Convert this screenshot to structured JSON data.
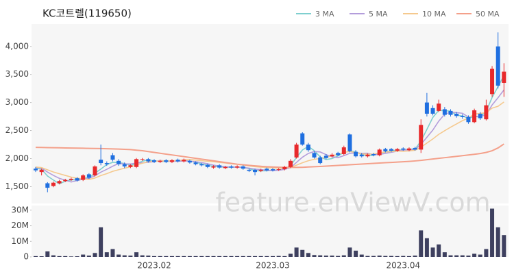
{
  "watermark": "feature.enViewV.com",
  "chart_data": [
    {
      "type": "candlestick",
      "title": "KC코트렐(119650)",
      "up_color": "#e8292b",
      "down_color": "#1f6fe0",
      "open": [
        1820,
        1760,
        1560,
        1510,
        1560,
        1600,
        1620,
        1650,
        1620,
        1720,
        1700,
        1980,
        1920,
        2060,
        1960,
        1900,
        1850,
        1850,
        1980,
        1990,
        1970,
        1940,
        1970,
        1940,
        1980,
        1950,
        1960,
        1930,
        1900,
        1890,
        1840,
        1880,
        1830,
        1860,
        1840,
        1860,
        1800,
        1800,
        1780,
        1820,
        1810,
        1800,
        1810,
        1850,
        2020,
        2450,
        2250,
        2100,
        2020,
        2050,
        2040,
        2100,
        2080,
        2430,
        2120,
        2070,
        2040,
        2080,
        2060,
        2170,
        2170,
        2140,
        2180,
        2150,
        2190,
        2160,
        3000,
        2900,
        2850,
        2880,
        2850,
        2800,
        2760,
        2740,
        2650,
        2800,
        2700,
        3150,
        4000,
        3350
      ],
      "high": [
        1850,
        1820,
        1580,
        1590,
        1620,
        1640,
        1660,
        1670,
        1720,
        1740,
        1880,
        2250,
        1950,
        2100,
        1990,
        1930,
        1900,
        2010,
        2010,
        2010,
        1990,
        1980,
        1990,
        1990,
        2000,
        2000,
        1980,
        1950,
        1920,
        1910,
        1880,
        1900,
        1870,
        1880,
        1880,
        1880,
        1820,
        1820,
        1820,
        1840,
        1830,
        1830,
        1870,
        1990,
        2280,
        2470,
        2280,
        2130,
        2050,
        2080,
        2100,
        2120,
        2230,
        2450,
        2150,
        2100,
        2090,
        2100,
        2180,
        2190,
        2190,
        2190,
        2200,
        2200,
        2210,
        2700,
        3170,
        2950,
        3050,
        2920,
        2880,
        2830,
        2790,
        2770,
        2890,
        2830,
        3050,
        3650,
        4250,
        3700
      ],
      "low": [
        1760,
        1700,
        1400,
        1490,
        1540,
        1580,
        1600,
        1590,
        1600,
        1640,
        1680,
        1880,
        1870,
        1950,
        1870,
        1830,
        1830,
        1830,
        1960,
        1930,
        1920,
        1920,
        1920,
        1920,
        1930,
        1930,
        1910,
        1880,
        1860,
        1830,
        1820,
        1820,
        1810,
        1820,
        1820,
        1800,
        1760,
        1700,
        1760,
        1770,
        1770,
        1780,
        1790,
        1830,
        2000,
        2230,
        2120,
        2000,
        1900,
        1990,
        2020,
        2040,
        2060,
        2110,
        2020,
        2020,
        2020,
        2040,
        2040,
        2110,
        2120,
        2120,
        2140,
        2130,
        2140,
        2100,
        2750,
        2770,
        2830,
        2750,
        2750,
        2730,
        2710,
        2620,
        2630,
        2690,
        2680,
        3100,
        3250,
        3100
      ],
      "close": [
        1790,
        1800,
        1480,
        1570,
        1600,
        1620,
        1640,
        1610,
        1700,
        1660,
        1860,
        1920,
        1900,
        1980,
        1900,
        1860,
        1880,
        1990,
        1990,
        1950,
        1940,
        1960,
        1940,
        1970,
        1950,
        1980,
        1930,
        1900,
        1880,
        1850,
        1860,
        1840,
        1850,
        1840,
        1860,
        1820,
        1780,
        1760,
        1800,
        1790,
        1790,
        1810,
        1850,
        1960,
        2250,
        2250,
        2150,
        2020,
        1920,
        2010,
        2070,
        2060,
        2200,
        2130,
        2040,
        2040,
        2070,
        2060,
        2160,
        2130,
        2140,
        2170,
        2160,
        2180,
        2160,
        2600,
        2800,
        2800,
        2980,
        2780,
        2780,
        2760,
        2740,
        2650,
        2860,
        2720,
        2950,
        3600,
        3300,
        3550
      ],
      "series": [
        {
          "name": "3 MA",
          "color": "#7fcfcf",
          "values": [
            1830,
            1810,
            1690,
            1617,
            1550,
            1597,
            1620,
            1623,
            1650,
            1657,
            1740,
            1813,
            1893,
            1933,
            1927,
            1913,
            1880,
            1910,
            1953,
            1977,
            1960,
            1950,
            1947,
            1957,
            1953,
            1967,
            1953,
            1937,
            1903,
            1877,
            1863,
            1850,
            1850,
            1843,
            1850,
            1840,
            1820,
            1787,
            1780,
            1783,
            1793,
            1797,
            1817,
            1873,
            2020,
            2153,
            2217,
            2140,
            2030,
            1983,
            2000,
            2047,
            2110,
            2130,
            2123,
            2070,
            2050,
            2057,
            2097,
            2117,
            2143,
            2147,
            2157,
            2170,
            2167,
            2313,
            2520,
            2733,
            2860,
            2853,
            2847,
            2773,
            2760,
            2717,
            2750,
            2743,
            2843,
            3090,
            3283,
            3483
          ]
        },
        {
          "name": "5 MA",
          "color": "#b39ddb",
          "values": [
            1840,
            1830,
            1760,
            1700,
            1648,
            1614,
            1582,
            1608,
            1634,
            1646,
            1694,
            1758,
            1808,
            1864,
            1912,
            1904,
            1904,
            1922,
            1924,
            1934,
            1946,
            1966,
            1956,
            1952,
            1952,
            1960,
            1954,
            1946,
            1928,
            1908,
            1884,
            1866,
            1856,
            1848,
            1850,
            1842,
            1830,
            1812,
            1804,
            1790,
            1784,
            1790,
            1808,
            1840,
            1932,
            2024,
            2092,
            2126,
            2118,
            2070,
            2034,
            2016,
            2052,
            2094,
            2102,
            2094,
            2096,
            2068,
            2074,
            2092,
            2112,
            2132,
            2152,
            2156,
            2162,
            2254,
            2380,
            2508,
            2668,
            2792,
            2828,
            2820,
            2808,
            2742,
            2758,
            2746,
            2784,
            2956,
            3086,
            3224
          ]
        },
        {
          "name": "10 MA",
          "color": "#f5c98e",
          "values": [
            1850,
            1840,
            1800,
            1760,
            1730,
            1700,
            1670,
            1650,
            1640,
            1627,
            1654,
            1698,
            1731,
            1772,
            1802,
            1828,
            1852,
            1887,
            1916,
            1945,
            1953,
            1957,
            1961,
            1960,
            1965,
            1977,
            1982,
            1973,
            1962,
            1952,
            1944,
            1932,
            1921,
            1908,
            1897,
            1884,
            1869,
            1855,
            1847,
            1841,
            1834,
            1831,
            1831,
            1843,
            1882,
            1925,
            1962,
            1988,
            2000,
            2022,
            2050,
            2075,
            2110,
            2127,
            2106,
            2085,
            2077,
            2081,
            2105,
            2117,
            2124,
            2135,
            2131,
            2136,
            2149,
            2203,
            2276,
            2350,
            2432,
            2497,
            2559,
            2618,
            2676,
            2723,
            2793,
            2805,
            2820,
            2900,
            2932,
            3009
          ]
        },
        {
          "name": "50 MA",
          "color": "#f4a08a",
          "values": [
            2200,
            2198,
            2196,
            2194,
            2192,
            2190,
            2188,
            2186,
            2184,
            2182,
            2180,
            2178,
            2175,
            2172,
            2170,
            2165,
            2160,
            2150,
            2140,
            2125,
            2110,
            2095,
            2080,
            2065,
            2050,
            2035,
            2020,
            2005,
            1990,
            1975,
            1960,
            1945,
            1930,
            1915,
            1900,
            1890,
            1880,
            1870,
            1862,
            1855,
            1850,
            1846,
            1843,
            1842,
            1842,
            1845,
            1850,
            1855,
            1860,
            1866,
            1872,
            1878,
            1884,
            1890,
            1896,
            1902,
            1908,
            1914,
            1920,
            1926,
            1932,
            1938,
            1944,
            1950,
            1958,
            1968,
            1980,
            1992,
            2004,
            2016,
            2028,
            2040,
            2052,
            2064,
            2076,
            2090,
            2110,
            2140,
            2190,
            2260
          ]
        }
      ],
      "ylim": [
        1200,
        4400
      ],
      "yticks": [
        {
          "value": 1500,
          "label": "1,500"
        },
        {
          "value": 2000,
          "label": "2,000"
        },
        {
          "value": 2500,
          "label": "2,500"
        },
        {
          "value": 3000,
          "label": "3,000"
        },
        {
          "value": 3500,
          "label": "3,500"
        },
        {
          "value": 4000,
          "label": "4,000"
        }
      ]
    },
    {
      "type": "bar",
      "color": "#3e405f",
      "categories": [
        null,
        null,
        null,
        null,
        null,
        null,
        null,
        null,
        null,
        null,
        null,
        null,
        null,
        null,
        null,
        null,
        null,
        null,
        null,
        null,
        "2023.02",
        null,
        null,
        null,
        null,
        null,
        null,
        null,
        null,
        null,
        null,
        null,
        null,
        null,
        null,
        null,
        null,
        null,
        null,
        null,
        "2023.03",
        null,
        null,
        null,
        null,
        null,
        null,
        null,
        null,
        null,
        null,
        null,
        null,
        null,
        null,
        null,
        null,
        null,
        null,
        null,
        null,
        null,
        "2023.04",
        null,
        null,
        null,
        null,
        null,
        null,
        null,
        null,
        null,
        null,
        null,
        null,
        null,
        null,
        null,
        null,
        null
      ],
      "values": [
        500000,
        400000,
        3500000,
        1000000,
        500000,
        500000,
        300000,
        400000,
        1500000,
        800000,
        2500000,
        19000000,
        3000000,
        5000000,
        1500000,
        1000000,
        800000,
        3000000,
        1000000,
        800000,
        500000,
        500000,
        500000,
        500000,
        500000,
        500000,
        500000,
        500000,
        500000,
        500000,
        500000,
        500000,
        500000,
        500000,
        500000,
        500000,
        500000,
        500000,
        500000,
        500000,
        500000,
        600000,
        500000,
        2000000,
        6000000,
        4500000,
        2500000,
        1200000,
        1000000,
        800000,
        800000,
        600000,
        1000000,
        6000000,
        4000000,
        1500000,
        600000,
        600000,
        800000,
        600000,
        600000,
        500000,
        600000,
        500000,
        800000,
        17000000,
        12000000,
        6000000,
        8000000,
        3000000,
        1000000,
        1000000,
        1000000,
        800000,
        2000000,
        1500000,
        5000000,
        31000000,
        19000000,
        14000000
      ],
      "ylim": [
        0,
        33000000
      ],
      "yticks": [
        0,
        {
          "value": 10000000,
          "label": "10M"
        },
        {
          "value": 20000000,
          "label": "20M"
        },
        {
          "value": 30000000,
          "label": "30M"
        }
      ]
    }
  ]
}
